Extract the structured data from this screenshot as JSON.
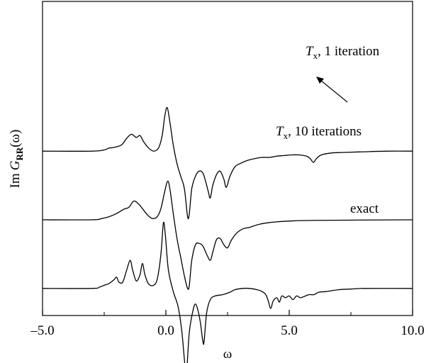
{
  "chart_data": {
    "type": "line",
    "xlabel": "ω",
    "ylabel": {
      "prefix": "Im",
      "G": "G",
      "subscript": "RR",
      "suffix": "(ω)"
    },
    "xlim": [
      -5.0,
      10.0
    ],
    "xticks": [
      -5.0,
      0.0,
      5.0,
      10.0
    ],
    "xtick_labels": [
      "–5.0",
      "0.0",
      "5.0",
      "10.0"
    ],
    "yticks_shown": false,
    "grid": false,
    "legend": "none",
    "y_units": "arbitrary (curves vertically offset)",
    "series": [
      {
        "label": {
          "T": "T",
          "sub": "x",
          "rest": ", 1 iteration"
        },
        "offset": 2.35,
        "points": [
          [
            -5.0,
            0.0
          ],
          [
            -3.0,
            0.0
          ],
          [
            -2.5,
            0.02
          ],
          [
            -2.3,
            0.05
          ],
          [
            -2.1,
            0.06
          ],
          [
            -1.8,
            0.1
          ],
          [
            -1.6,
            0.2
          ],
          [
            -1.4,
            0.27
          ],
          [
            -1.2,
            0.22
          ],
          [
            -1.05,
            0.25
          ],
          [
            -0.9,
            0.15
          ],
          [
            -0.7,
            0.05
          ],
          [
            -0.5,
            0.0
          ],
          [
            -0.3,
            0.05
          ],
          [
            -0.15,
            0.25
          ],
          [
            -0.05,
            0.55
          ],
          [
            0.05,
            0.7
          ],
          [
            0.15,
            0.5
          ],
          [
            0.3,
            0.1
          ],
          [
            0.45,
            -0.2
          ],
          [
            0.6,
            -0.4
          ],
          [
            0.75,
            -0.6
          ],
          [
            0.88,
            -1.05
          ],
          [
            0.95,
            -1.0
          ],
          [
            1.05,
            -0.6
          ],
          [
            1.2,
            -0.4
          ],
          [
            1.35,
            -0.32
          ],
          [
            1.5,
            -0.35
          ],
          [
            1.62,
            -0.5
          ],
          [
            1.72,
            -0.65
          ],
          [
            1.8,
            -0.75
          ],
          [
            1.9,
            -0.55
          ],
          [
            2.05,
            -0.38
          ],
          [
            2.2,
            -0.32
          ],
          [
            2.35,
            -0.45
          ],
          [
            2.45,
            -0.58
          ],
          [
            2.6,
            -0.4
          ],
          [
            2.8,
            -0.25
          ],
          [
            3.0,
            -0.2
          ],
          [
            3.3,
            -0.15
          ],
          [
            3.6,
            -0.12
          ],
          [
            3.9,
            -0.1
          ],
          [
            4.2,
            -0.1
          ],
          [
            4.5,
            -0.08
          ],
          [
            4.8,
            -0.07
          ],
          [
            5.1,
            -0.06
          ],
          [
            5.4,
            -0.06
          ],
          [
            5.7,
            -0.08
          ],
          [
            5.85,
            -0.12
          ],
          [
            5.98,
            -0.18
          ],
          [
            6.1,
            -0.12
          ],
          [
            6.3,
            -0.06
          ],
          [
            6.7,
            -0.03
          ],
          [
            7.2,
            -0.02
          ],
          [
            8.0,
            -0.01
          ],
          [
            9.0,
            0.0
          ],
          [
            10.0,
            0.0
          ]
        ]
      },
      {
        "label": {
          "T": "T",
          "sub": "x",
          "rest": ", 10 iterations"
        },
        "offset": 1.25,
        "points": [
          [
            -5.0,
            0.0
          ],
          [
            -3.0,
            0.0
          ],
          [
            -2.6,
            0.02
          ],
          [
            -2.3,
            0.05
          ],
          [
            -2.0,
            0.1
          ],
          [
            -1.7,
            0.17
          ],
          [
            -1.5,
            0.2
          ],
          [
            -1.3,
            0.3
          ],
          [
            -1.1,
            0.25
          ],
          [
            -0.95,
            0.18
          ],
          [
            -0.75,
            0.08
          ],
          [
            -0.55,
            0.02
          ],
          [
            -0.35,
            0.05
          ],
          [
            -0.2,
            0.18
          ],
          [
            -0.05,
            0.45
          ],
          [
            0.08,
            0.62
          ],
          [
            0.18,
            0.45
          ],
          [
            0.3,
            0.1
          ],
          [
            0.45,
            -0.3
          ],
          [
            0.6,
            -0.6
          ],
          [
            0.75,
            -0.9
          ],
          [
            0.88,
            -1.1
          ],
          [
            0.95,
            -1.05
          ],
          [
            1.05,
            -0.65
          ],
          [
            1.2,
            -0.4
          ],
          [
            1.35,
            -0.38
          ],
          [
            1.5,
            -0.42
          ],
          [
            1.65,
            -0.55
          ],
          [
            1.8,
            -0.65
          ],
          [
            1.9,
            -0.52
          ],
          [
            2.05,
            -0.32
          ],
          [
            2.2,
            -0.3
          ],
          [
            2.35,
            -0.4
          ],
          [
            2.5,
            -0.45
          ],
          [
            2.65,
            -0.33
          ],
          [
            2.85,
            -0.22
          ],
          [
            3.1,
            -0.15
          ],
          [
            3.4,
            -0.12
          ],
          [
            3.8,
            -0.07
          ],
          [
            4.3,
            -0.04
          ],
          [
            5.0,
            -0.02
          ],
          [
            6.0,
            -0.01
          ],
          [
            10.0,
            0.0
          ]
        ]
      },
      {
        "label": {
          "T": "",
          "sub": "",
          "rest": "exact"
        },
        "offset": 0.15,
        "points": [
          [
            -5.0,
            0.0
          ],
          [
            -3.0,
            0.0
          ],
          [
            -2.7,
            0.02
          ],
          [
            -2.5,
            0.05
          ],
          [
            -2.3,
            0.08
          ],
          [
            -2.1,
            0.14
          ],
          [
            -2.0,
            0.18
          ],
          [
            -1.9,
            0.1
          ],
          [
            -1.75,
            0.1
          ],
          [
            -1.6,
            0.28
          ],
          [
            -1.45,
            0.45
          ],
          [
            -1.35,
            0.3
          ],
          [
            -1.2,
            0.12
          ],
          [
            -1.05,
            0.22
          ],
          [
            -0.95,
            0.4
          ],
          [
            -0.85,
            0.22
          ],
          [
            -0.7,
            0.07
          ],
          [
            -0.5,
            0.05
          ],
          [
            -0.35,
            0.15
          ],
          [
            -0.2,
            0.55
          ],
          [
            -0.1,
            1.05
          ],
          [
            -0.02,
            0.85
          ],
          [
            0.1,
            0.3
          ],
          [
            0.3,
            -0.05
          ],
          [
            0.5,
            -0.3
          ],
          [
            0.65,
            -0.7
          ],
          [
            0.78,
            -1.25
          ],
          [
            0.85,
            -1.27
          ],
          [
            0.95,
            -0.7
          ],
          [
            1.1,
            -0.35
          ],
          [
            1.2,
            -0.25
          ],
          [
            1.3,
            -0.35
          ],
          [
            1.4,
            -0.55
          ],
          [
            1.5,
            -0.85
          ],
          [
            1.55,
            -0.85
          ],
          [
            1.65,
            -0.4
          ],
          [
            1.8,
            -0.18
          ],
          [
            2.0,
            -0.12
          ],
          [
            2.3,
            -0.1
          ],
          [
            2.6,
            -0.06
          ],
          [
            2.8,
            -0.02
          ],
          [
            3.1,
            0.0
          ],
          [
            3.4,
            0.0
          ],
          [
            3.7,
            -0.02
          ],
          [
            3.9,
            -0.05
          ],
          [
            4.05,
            -0.1
          ],
          [
            4.15,
            -0.2
          ],
          [
            4.25,
            -0.32
          ],
          [
            4.35,
            -0.2
          ],
          [
            4.5,
            -0.15
          ],
          [
            4.6,
            -0.22
          ],
          [
            4.7,
            -0.12
          ],
          [
            4.85,
            -0.15
          ],
          [
            5.0,
            -0.12
          ],
          [
            5.15,
            -0.18
          ],
          [
            5.3,
            -0.12
          ],
          [
            5.45,
            -0.15
          ],
          [
            5.6,
            -0.13
          ],
          [
            5.8,
            -0.1
          ],
          [
            6.0,
            -0.1
          ],
          [
            6.2,
            -0.06
          ],
          [
            6.5,
            -0.05
          ],
          [
            7.0,
            -0.02
          ],
          [
            7.5,
            -0.01
          ],
          [
            8.0,
            0.0
          ],
          [
            10.0,
            0.0
          ]
        ]
      }
    ],
    "annotation": {
      "type": "arrow",
      "points_to_series": 0,
      "target_x": 5.95
    }
  }
}
